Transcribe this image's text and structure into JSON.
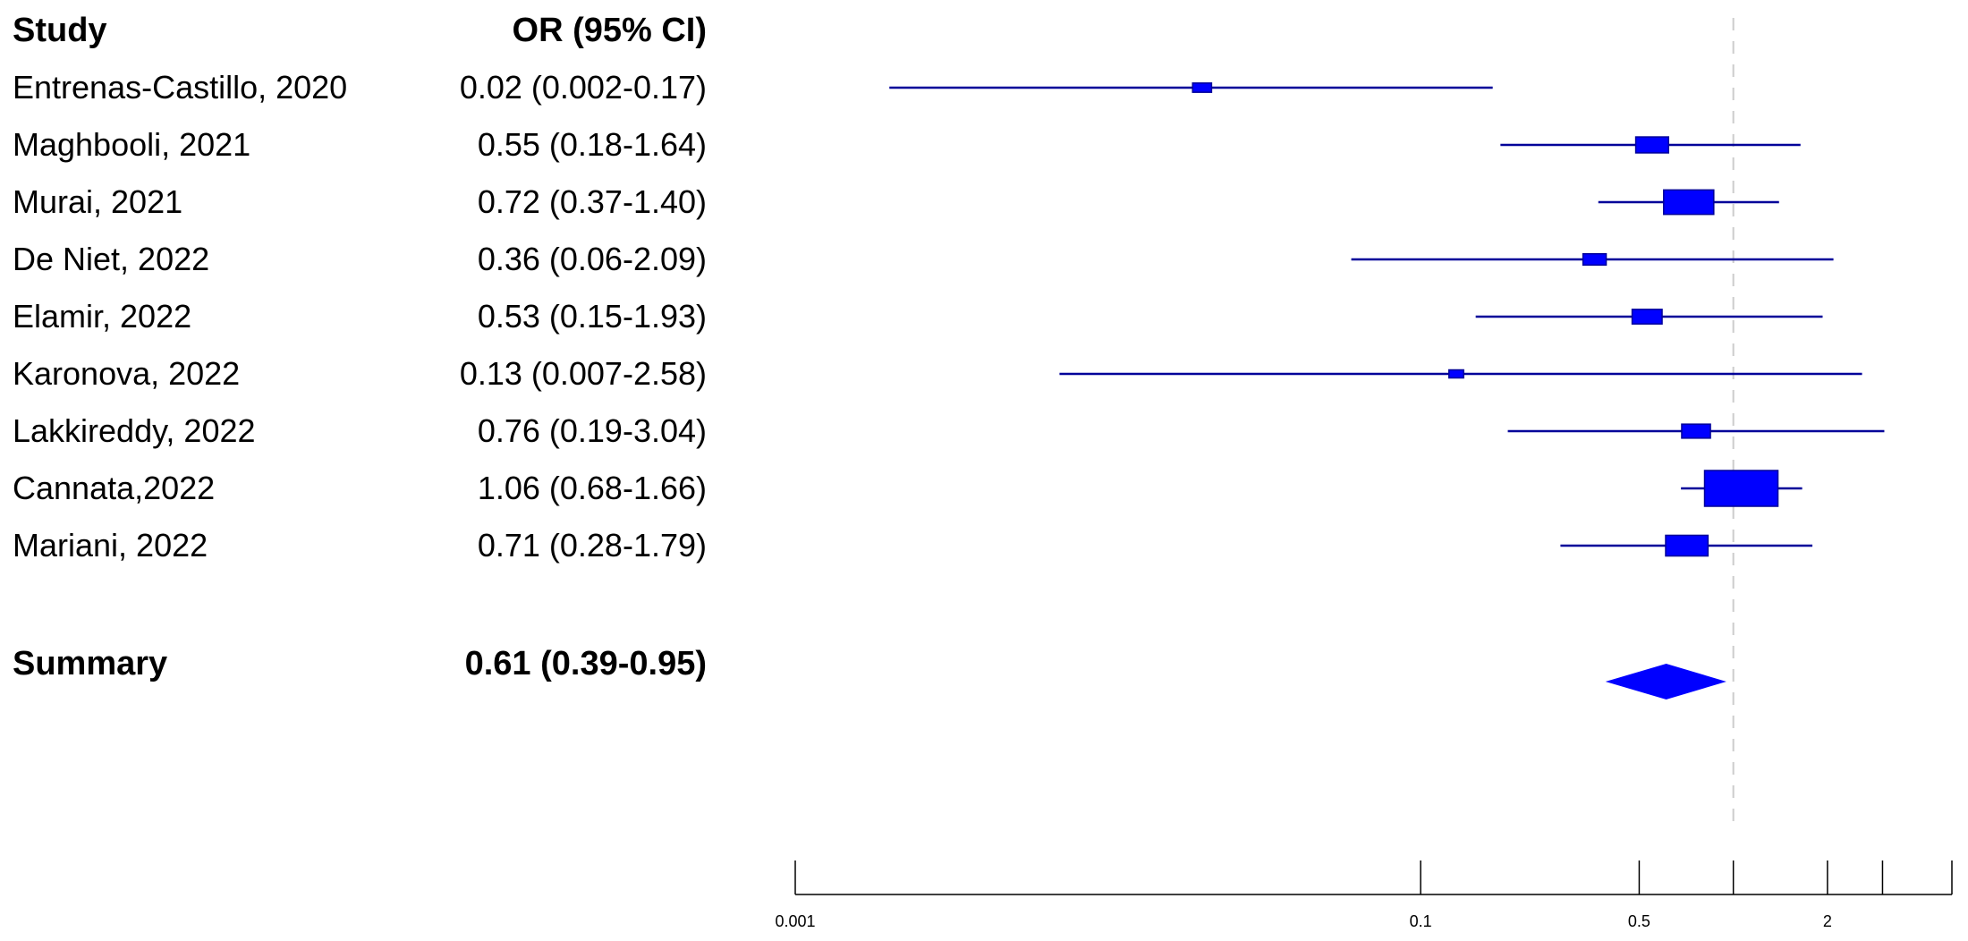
{
  "chart_data": {
    "type": "forest",
    "headers": {
      "study": "Study",
      "estimate": "OR (95% CI)"
    },
    "studies": [
      {
        "label": "Entrenas-Castillo, 2020",
        "ci_text": "0.02 (0.002-0.17)",
        "or": 0.02,
        "lower": 0.002,
        "upper": 0.17,
        "weight": 1
      },
      {
        "label": "Maghbooli, 2021",
        "ci_text": "0.55 (0.18-1.64)",
        "or": 0.55,
        "lower": 0.18,
        "upper": 1.64,
        "weight": 3
      },
      {
        "label": "Murai, 2021",
        "ci_text": "0.72 (0.37-1.40)",
        "or": 0.72,
        "lower": 0.37,
        "upper": 1.4,
        "weight": 7
      },
      {
        "label": "De Niet, 2022",
        "ci_text": "0.36 (0.06-2.09)",
        "or": 0.36,
        "lower": 0.06,
        "upper": 2.09,
        "weight": 1.5
      },
      {
        "label": "Elamir, 2022",
        "ci_text": "0.53 (0.15-1.93)",
        "or": 0.53,
        "lower": 0.15,
        "upper": 1.93,
        "weight": 2.5
      },
      {
        "label": "Karonova, 2022",
        "ci_text": "0.13 (0.007-2.58)",
        "or": 0.13,
        "lower": 0.007,
        "upper": 2.58,
        "weight": 0.6
      },
      {
        "label": "Lakkireddy, 2022",
        "ci_text": "0.76 (0.19-3.04)",
        "or": 0.76,
        "lower": 0.19,
        "upper": 3.04,
        "weight": 2.3
      },
      {
        "label": "Cannata,2022",
        "ci_text": "1.06 (0.68-1.66)",
        "or": 1.06,
        "lower": 0.68,
        "upper": 1.66,
        "weight": 15
      },
      {
        "label": "Mariani, 2022",
        "ci_text": "0.71 (0.28-1.79)",
        "or": 0.71,
        "lower": 0.28,
        "upper": 1.79,
        "weight": 5
      }
    ],
    "summary": {
      "label": "Summary",
      "ci_text": "0.61 (0.39-0.95)",
      "or": 0.61,
      "lower": 0.39,
      "upper": 0.95
    },
    "x_axis": {
      "scale": "log",
      "range": [
        0.001,
        5
      ],
      "tick_values": [
        0.001,
        0.1,
        0.5,
        1,
        2,
        3,
        5
      ],
      "tick_labels": [
        "0.001",
        "0.1",
        "0.5",
        "",
        "2",
        "",
        ""
      ]
    },
    "null_line": 1,
    "colors": {
      "ci_line": "#000099",
      "box": "#0000ff",
      "diamond": "#0000ff",
      "axis": "#000000",
      "null_line": "#cccccc"
    }
  }
}
